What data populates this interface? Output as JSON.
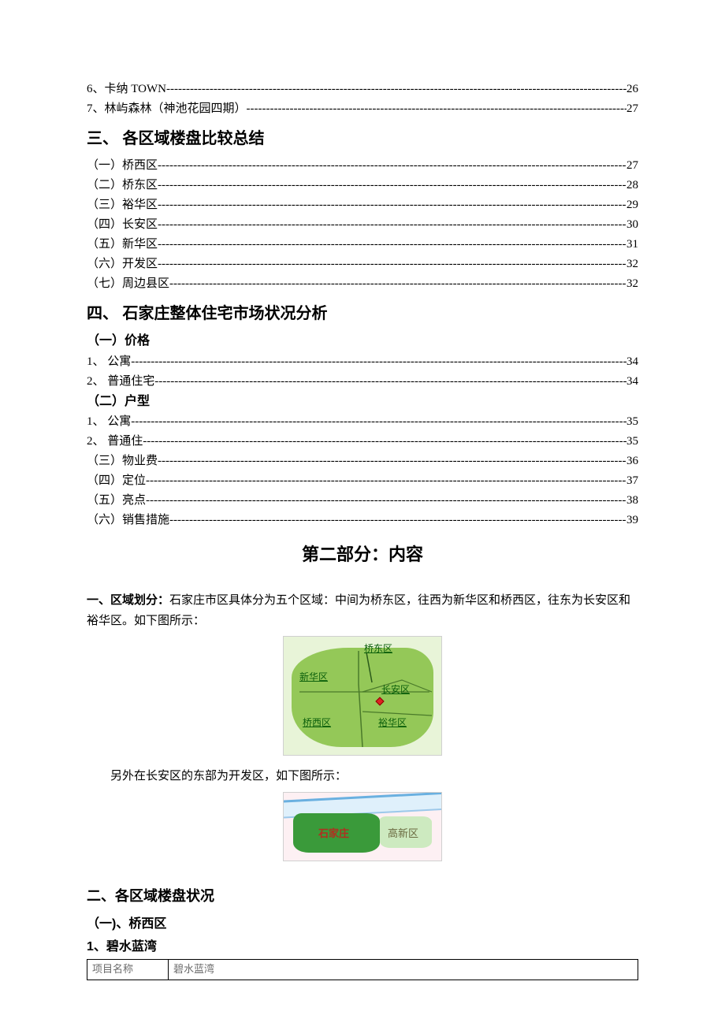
{
  "toc_top": [
    {
      "label": "6、卡纳 TOWN",
      "page": "26"
    },
    {
      "label": "7、林屿森林（神池花园四期）",
      "page": "27"
    }
  ],
  "section3": {
    "heading": "三、 各区域楼盘比较总结",
    "items": [
      {
        "label": "（一）桥西区",
        "page": "27"
      },
      {
        "label": "（二）桥东区",
        "page": "28"
      },
      {
        "label": "（三）裕华区",
        "page": "29"
      },
      {
        "label": "（四）长安区",
        "page": "30"
      },
      {
        "label": "（五）新华区",
        "page": "31"
      },
      {
        "label": "（六）开发区",
        "page": "32"
      },
      {
        "label": "（七）周边县区",
        "page": "32"
      }
    ]
  },
  "section4": {
    "heading": "四、 石家庄整体住宅市场状况分析",
    "sub1": {
      "heading": "（一）价格"
    },
    "sub1_items": [
      {
        "label": "1、 公寓",
        "page": "34"
      },
      {
        "label": "2、 普通住宅",
        "page": "34"
      }
    ],
    "sub2": {
      "heading": "（二）户型"
    },
    "sub2_items": [
      {
        "label": "1、 公寓",
        "page": "35"
      },
      {
        "label": "2、 普通住",
        "page": "35"
      }
    ],
    "tail": [
      {
        "label": "（三）物业费",
        "page": "36"
      },
      {
        "label": "（四）定位",
        "page": "37"
      },
      {
        "label": "（五）亮点",
        "page": "38"
      },
      {
        "label": "（六）销售措施",
        "page": "39"
      }
    ]
  },
  "part2_title": "第二部分：内容",
  "body": {
    "p1_bold": "一、区域划分：",
    "p1_rest": "石家庄市区具体分为五个区域：中间为桥东区，往西为新华区和桥西区，往东为长安区和裕华区。如下图所示：",
    "p2_indent": "另外在长安区的东部为开发区，如下图所示："
  },
  "map1": {
    "labels": {
      "qiaodong": "桥东区",
      "xinhua": "新华区",
      "changan": "长安区",
      "qiaoxi": "桥西区",
      "yuhua": "裕华区"
    },
    "bg": "#e8f4d8",
    "shape_color": "#8bc34a",
    "label_color": "#0b5f0b"
  },
  "map2": {
    "labels": {
      "sjz": "石家庄",
      "gxq": "高新区"
    },
    "sjz_color": "#b03020",
    "gxq_color": "#6a6a40"
  },
  "section_b": {
    "heading": "二、各区域楼盘状况",
    "sub1": "（一)、桥西区",
    "item1": "1、碧水蓝湾"
  },
  "table": {
    "row1": {
      "key": "项目名称",
      "val": "碧水蓝湾"
    }
  }
}
